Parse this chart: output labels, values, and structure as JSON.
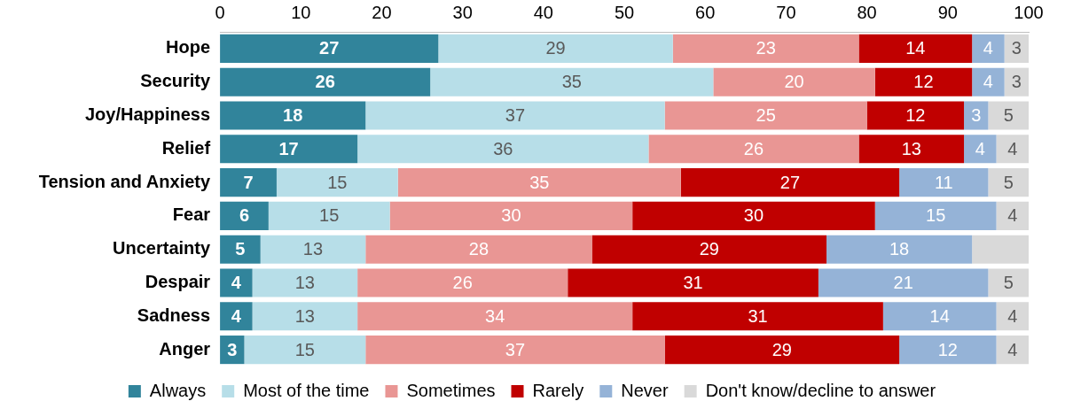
{
  "chart_data": {
    "type": "bar",
    "orientation": "horizontal",
    "stacked": true,
    "categories": [
      "Hope",
      "Security",
      "Joy/Happiness",
      "Relief",
      "Tension and Anxiety",
      "Fear",
      "Uncertainty",
      "Despair",
      "Sadness",
      "Anger"
    ],
    "xlim": [
      0,
      100
    ],
    "xticks": [
      0,
      10,
      20,
      30,
      40,
      50,
      60,
      70,
      80,
      90,
      100
    ],
    "grid": false,
    "legend": "bottom",
    "series": [
      {
        "name": "Always",
        "color": "#31849b",
        "values": [
          27,
          26,
          18,
          17,
          7,
          6,
          5,
          4,
          4,
          3
        ],
        "value_labels": [
          "27",
          "26",
          "18",
          "17",
          "7",
          "6",
          "5",
          "4",
          "4",
          "3"
        ]
      },
      {
        "name": "Most of the time",
        "color": "#b7dee8",
        "values": [
          29,
          35,
          37,
          36,
          15,
          15,
          13,
          13,
          13,
          15
        ],
        "value_labels": [
          "29",
          "35",
          "37",
          "36",
          "15",
          "15",
          "13",
          "13",
          "13",
          "15"
        ]
      },
      {
        "name": "Sometimes",
        "color": "#e99694",
        "values": [
          23,
          20,
          25,
          26,
          35,
          30,
          28,
          26,
          34,
          37
        ],
        "value_labels": [
          "23",
          "20",
          "25",
          "26",
          "35",
          "30",
          "28",
          "26",
          "34",
          "37"
        ]
      },
      {
        "name": "Rarely",
        "color": "#c00000",
        "values": [
          14,
          12,
          12,
          13,
          27,
          30,
          29,
          31,
          31,
          29
        ],
        "value_labels": [
          "14",
          "12",
          "12",
          "13",
          "27",
          "30",
          "29",
          "31",
          "31",
          "29"
        ]
      },
      {
        "name": "Never",
        "color": "#95b3d7",
        "values": [
          4,
          4,
          3,
          4,
          11,
          15,
          18,
          21,
          14,
          12
        ],
        "value_labels": [
          "4",
          "4",
          "3",
          "4",
          "11",
          "15",
          "18",
          "21",
          "14",
          "12"
        ]
      },
      {
        "name": "Don't know/decline to answer",
        "color": "#d9d9d9",
        "values": [
          3,
          3,
          5,
          4,
          5,
          4,
          7,
          5,
          4,
          4
        ],
        "value_labels": [
          "3",
          "3",
          "5",
          "4",
          "5",
          "4",
          null,
          "5",
          "4",
          "4"
        ]
      }
    ]
  }
}
